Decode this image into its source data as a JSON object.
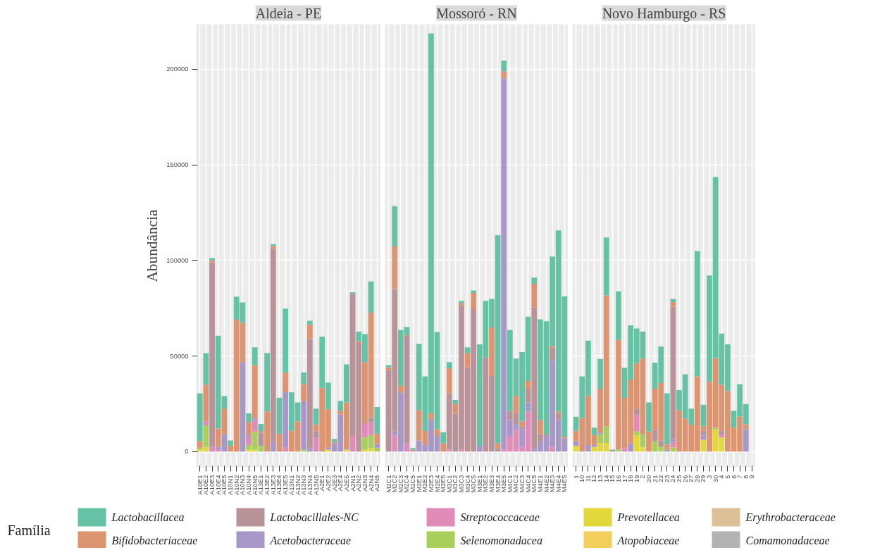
{
  "chart_data": [
    {
      "type": "bar",
      "stacked": true,
      "title": "Aldeia - PE",
      "ylabel": "Abundância",
      "legend_title": "Família",
      "legend": "bottom",
      "grid": true,
      "categories": [
        "A10E1",
        "A10E2",
        "A10E3",
        "A10E4",
        "A10E5",
        "A10N1",
        "A10N2",
        "A10N3",
        "A10N4",
        "A10N5",
        "A13E1",
        "A13E2",
        "A13E3",
        "A13E4",
        "A13E5",
        "A13N1",
        "A13N2",
        "A13N3",
        "A13N4",
        "A13N5",
        "A2E1",
        "A2E2",
        "A2E3",
        "A2E4",
        "A2E5",
        "A2N1",
        "A2N2",
        "A2N3",
        "A2N4",
        "A2N5"
      ],
      "ylim": [
        -8200,
        223500
      ],
      "yticks": [
        0,
        50000,
        100000,
        150000,
        200000
      ],
      "series": [
        {
          "name": "Comamonadaceae",
          "color": "#b3b3b3",
          "values": [
            0,
            0,
            0,
            0,
            0,
            0,
            0,
            0,
            0,
            0,
            0,
            0,
            0,
            0,
            0,
            0,
            0,
            0,
            0,
            0,
            0,
            0,
            0,
            0,
            0,
            0,
            0,
            0,
            0,
            0
          ]
        },
        {
          "name": "Erythrobacteraceae",
          "color": "#dcc196",
          "values": [
            0,
            0,
            0,
            0,
            0,
            0,
            0,
            0,
            0,
            0,
            0,
            0,
            0,
            0,
            0,
            0,
            0,
            0,
            0,
            0,
            0,
            0,
            0,
            0,
            0,
            0,
            0,
            0,
            0,
            0
          ]
        },
        {
          "name": "Atopobiaceae",
          "color": "#f2cf5c",
          "values": [
            0,
            0,
            0,
            0,
            0,
            0,
            0,
            0,
            0,
            0,
            0,
            0,
            0,
            0,
            0,
            0,
            0,
            0,
            0,
            0,
            0,
            0,
            0,
            0,
            0,
            0,
            0,
            0,
            0,
            0
          ]
        },
        {
          "name": "Prevotellacea",
          "color": "#e2d83c",
          "values": [
            1000,
            2400,
            0,
            0,
            0,
            0,
            0,
            0,
            1000,
            1000,
            0,
            0,
            0,
            0,
            0,
            0,
            0,
            0,
            0,
            0,
            0,
            1000,
            0,
            0,
            1000,
            0,
            0,
            1000,
            1800,
            0
          ]
        },
        {
          "name": "Selenomonadacea",
          "color": "#a8cf5c",
          "values": [
            1000,
            11300,
            0,
            0,
            0,
            0,
            0,
            0,
            2300,
            9500,
            3000,
            0,
            0,
            0,
            0,
            0,
            0,
            1000,
            0,
            0,
            0,
            0,
            0,
            0,
            0,
            0,
            0,
            6400,
            6800,
            2000
          ]
        },
        {
          "name": "Streptococcaceae",
          "color": "#e08bb8",
          "values": [
            0,
            1500,
            2500,
            1000,
            0,
            0,
            0,
            0,
            4500,
            6000,
            0,
            0,
            0,
            0,
            2000,
            0,
            0,
            0,
            0,
            7400,
            0,
            0,
            0,
            0,
            0,
            8200,
            0,
            7100,
            6700,
            0
          ]
        },
        {
          "name": "Acetobacteraceae",
          "color": "#a898c8",
          "values": [
            0,
            500,
            0,
            1500,
            9000,
            0,
            0,
            46800,
            1000,
            1000,
            0,
            0,
            5000,
            0,
            29000,
            0,
            0,
            25500,
            1800,
            0,
            0,
            1000,
            4200,
            19300,
            500,
            0,
            0,
            0,
            0,
            2000
          ]
        },
        {
          "name": "Lactobacillales-NC",
          "color": "#b9939a",
          "values": [
            0,
            0,
            96500,
            0,
            0,
            0,
            0,
            0,
            0,
            0,
            6800,
            0,
            101000,
            0,
            0,
            0,
            0,
            0,
            57000,
            3100,
            0,
            0,
            0,
            0,
            0,
            74300,
            56800,
            500,
            2400,
            0
          ]
        },
        {
          "name": "Bifidobacteriaceae",
          "color": "#dc9570",
          "values": [
            3500,
            19300,
            1000,
            9600,
            13500,
            3000,
            69000,
            20500,
            6500,
            27700,
            1000,
            21000,
            1500,
            9300,
            10400,
            10900,
            15700,
            8800,
            7700,
            3700,
            33300,
            20100,
            800,
            2000,
            24200,
            0,
            900,
            31800,
            55000,
            5400
          ]
        },
        {
          "name": "Lactobacillacea",
          "color": "#66c2a5",
          "values": [
            25000,
            16500,
            1200,
            48500,
            6500,
            2800,
            12000,
            10700,
            4700,
            9300,
            3700,
            30600,
            1000,
            18900,
            33400,
            20100,
            10000,
            6100,
            1900,
            8300,
            26800,
            14000,
            1600,
            5200,
            19900,
            800,
            5100,
            14700,
            16300,
            13900
          ]
        }
      ]
    },
    {
      "type": "bar",
      "stacked": true,
      "title": "Mossoró - RN",
      "grid": true,
      "tick_labels": "x",
      "categories": [
        "M2C1",
        "M2C2",
        "M2C3",
        "M2C4",
        "M2C5",
        "M2E1",
        "M2E2",
        "M2E3",
        "M2E4",
        "M2E5",
        "M3C1",
        "M3C2",
        "M3C3",
        "M3C4",
        "M3C5",
        "M3E1",
        "M3E2",
        "M3E3",
        "M3E4",
        "M3E5",
        "M4C1",
        "M4C2",
        "M4C3",
        "M4C4",
        "M4C5",
        "M4E1",
        "M4E2",
        "M4E3",
        "M4E4",
        "M4E5"
      ],
      "ylim": [
        -8200,
        223500
      ],
      "yticks": [
        0,
        50000,
        100000,
        150000,
        200000
      ],
      "series": [
        {
          "color": "#b3b3b3",
          "values": [
            0,
            0,
            0,
            0,
            0,
            0,
            0,
            0,
            0,
            0,
            0,
            0,
            0,
            0,
            0,
            0,
            0,
            0,
            0,
            0,
            0,
            0,
            0,
            0,
            0,
            0,
            0,
            0,
            0,
            0
          ]
        },
        {
          "color": "#dcc196",
          "values": [
            0,
            0,
            0,
            0,
            0,
            0,
            0,
            0,
            0,
            0,
            0,
            0,
            0,
            0,
            0,
            0,
            0,
            0,
            0,
            0,
            0,
            0,
            0,
            0,
            0,
            0,
            0,
            0,
            0,
            0
          ]
        },
        {
          "color": "#f2cf5c",
          "values": [
            0,
            0,
            0,
            0,
            0,
            0,
            0,
            0,
            0,
            0,
            0,
            0,
            0,
            0,
            0,
            0,
            0,
            0,
            0,
            0,
            0,
            0,
            0,
            0,
            0,
            0,
            0,
            0,
            0,
            0
          ]
        },
        {
          "color": "#e2d83c",
          "values": [
            0,
            0,
            0,
            0,
            0,
            0,
            0,
            0,
            0,
            0,
            0,
            0,
            0,
            0,
            0,
            0,
            0,
            0,
            0,
            0,
            0,
            0,
            0,
            0,
            0,
            0,
            0,
            0,
            0,
            0
          ]
        },
        {
          "color": "#a8cf5c",
          "values": [
            0,
            0,
            0,
            0,
            0,
            0,
            0,
            0,
            0,
            0,
            0,
            0,
            0,
            0,
            0,
            0,
            0,
            0,
            0,
            0,
            0,
            0,
            0,
            0,
            0,
            0,
            0,
            0,
            0,
            0
          ]
        },
        {
          "color": "#e08bb8",
          "values": [
            0,
            8500,
            0,
            4200,
            500,
            0,
            0,
            0,
            0,
            0,
            1000,
            0,
            1000,
            0,
            0,
            0,
            0,
            0,
            0,
            1000,
            8200,
            11400,
            2600,
            20900,
            0,
            0,
            0,
            2600,
            0,
            0
          ]
        },
        {
          "color": "#a898c8",
          "values": [
            0,
            2000,
            30900,
            0,
            0,
            5800,
            3400,
            16900,
            8200,
            0,
            0,
            0,
            0,
            0,
            0,
            3000,
            0,
            0,
            0,
            194200,
            8300,
            2800,
            9100,
            4800,
            1500,
            5300,
            8200,
            45200,
            16900,
            6900
          ]
        },
        {
          "color": "#b9939a",
          "values": [
            42500,
            74400,
            0,
            55900,
            0,
            0,
            0,
            0,
            0,
            0,
            29500,
            19800,
            75600,
            44100,
            74500,
            0,
            49200,
            39800,
            1800,
            0,
            4800,
            5900,
            1600,
            6800,
            73800,
            3700,
            800,
            6700,
            2800,
            0
          ]
        },
        {
          "color": "#dc9570",
          "values": [
            1600,
            22400,
            3600,
            800,
            500,
            15900,
            7500,
            3200,
            3500,
            4200,
            13100,
            5100,
            1100,
            7500,
            8500,
            0,
            0,
            25100,
            2400,
            3700,
            0,
            8800,
            2500,
            4400,
            12500,
            7500,
            0,
            800,
            1200,
            900
          ]
        },
        {
          "color": "#66c2a5",
          "values": [
            1100,
            21100,
            29100,
            4300,
            800,
            34700,
            28400,
            198600,
            50800,
            5900,
            3200,
            2100,
            1100,
            2900,
            1300,
            53100,
            29600,
            14900,
            109000,
            5600,
            42300,
            19700,
            36200,
            33600,
            3200,
            52700,
            59100,
            46700,
            94800,
            73400
          ]
        }
      ]
    },
    {
      "type": "bar",
      "stacked": true,
      "title": "Novo Hamburgo - RS",
      "grid": true,
      "tick_labels": "x",
      "categories": [
        "1",
        "10",
        "11",
        "12",
        "13",
        "14",
        "15",
        "16",
        "17",
        "18",
        "19",
        "2",
        "20",
        "21",
        "22",
        "23",
        "24",
        "25",
        "26",
        "27",
        "28",
        "29",
        "3",
        "30",
        "4",
        "5",
        "6",
        "7",
        "8",
        "9"
      ],
      "ylim": [
        -8200,
        223500
      ],
      "yticks": [
        0,
        50000,
        100000,
        150000,
        200000
      ],
      "series": [
        {
          "color": "#b3b3b3",
          "values": [
            0,
            0,
            0,
            0,
            0,
            0,
            0,
            0,
            0,
            0,
            0,
            0,
            0,
            0,
            0,
            0,
            0,
            0,
            0,
            0,
            0,
            0,
            0,
            0,
            0,
            0,
            0,
            0,
            0,
            0
          ]
        },
        {
          "color": "#dcc196",
          "values": [
            0,
            0,
            0,
            0,
            0,
            0,
            0,
            0,
            0,
            0,
            0,
            0,
            0,
            0,
            0,
            0,
            0,
            0,
            0,
            0,
            0,
            0,
            0,
            0,
            0,
            0,
            0,
            0,
            0,
            0
          ]
        },
        {
          "color": "#f2cf5c",
          "values": [
            0,
            0,
            0,
            0,
            0,
            0,
            0,
            0,
            0,
            0,
            0,
            0,
            0,
            0,
            0,
            0,
            0,
            0,
            0,
            0,
            0,
            0,
            0,
            0,
            0,
            0,
            0,
            0,
            0,
            0
          ]
        },
        {
          "color": "#e2d83c",
          "values": [
            3000,
            0,
            0,
            2500,
            4500,
            4500,
            0,
            0,
            0,
            0,
            8500,
            2600,
            0,
            0,
            0,
            0,
            0,
            0,
            0,
            0,
            0,
            6200,
            0,
            11400,
            7400,
            0,
            0,
            0,
            0,
            0
          ]
        },
        {
          "color": "#a8cf5c",
          "values": [
            0,
            0,
            0,
            0,
            4500,
            8800,
            0,
            1000,
            0,
            0,
            2100,
            6400,
            0,
            5300,
            2600,
            0,
            2200,
            0,
            0,
            0,
            0,
            0,
            0,
            1100,
            0,
            0,
            0,
            0,
            0,
            0
          ]
        },
        {
          "color": "#e08bb8",
          "values": [
            0,
            0,
            0,
            0,
            0,
            0,
            0,
            0,
            1800,
            0,
            8700,
            0,
            0,
            0,
            0,
            0,
            2800,
            0,
            0,
            0,
            0,
            0,
            0,
            0,
            1600,
            0,
            0,
            0,
            0,
            0
          ]
        },
        {
          "color": "#a898c8",
          "values": [
            2300,
            0,
            3400,
            1200,
            800,
            0,
            0,
            0,
            0,
            4200,
            0,
            0,
            0,
            0,
            0,
            1000,
            1600,
            0,
            0,
            0,
            0,
            2200,
            0,
            0,
            0,
            0,
            0,
            0,
            11700,
            0
          ]
        },
        {
          "color": "#b9939a",
          "values": [
            0,
            0,
            0,
            0,
            0,
            0,
            0,
            0,
            0,
            0,
            3200,
            0,
            0,
            6100,
            3200,
            0,
            69200,
            0,
            0,
            0,
            0,
            2500,
            0,
            0,
            2000,
            0,
            0,
            0,
            0,
            0
          ]
        },
        {
          "color": "#dc9570",
          "values": [
            5600,
            17700,
            25900,
            4900,
            23100,
            68400,
            500,
            57500,
            26300,
            33500,
            23700,
            39600,
            10600,
            21500,
            30000,
            2700,
            2400,
            21700,
            17300,
            14100,
            39300,
            2400,
            36500,
            36400,
            23900,
            31700,
            12500,
            18400,
            2500,
            0
          ]
        },
        {
          "color": "#66c2a5",
          "values": [
            7300,
            21600,
            28700,
            3900,
            15500,
            30300,
            500,
            25300,
            15700,
            28300,
            18200,
            14200,
            15100,
            13600,
            19200,
            26800,
            1600,
            10400,
            23100,
            8400,
            65600,
            11200,
            55600,
            94800,
            26800,
            24400,
            8900,
            16900,
            10700,
            0
          ]
        }
      ]
    }
  ]
}
